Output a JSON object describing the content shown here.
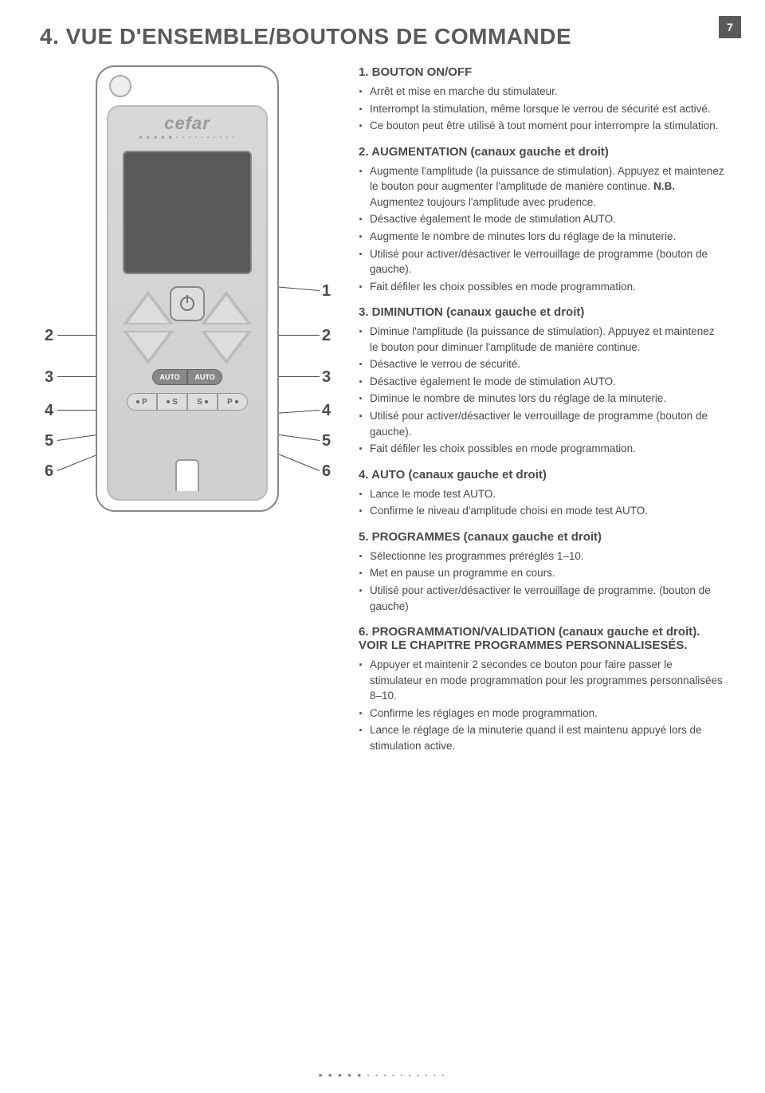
{
  "page": {
    "title": "4. VUE D'ENSEMBLE/BOUTONS DE COMMANDE",
    "number": "7"
  },
  "device": {
    "brand": "cefar",
    "brand_dots": "■ ■ ■ ■ ■ ▪ ▪ ▪ ▪ ▪ ▪ ▪ ▪ ▪ ▪",
    "auto_label": "AUTO",
    "btn_p": "P",
    "btn_s": "S"
  },
  "callouts": {
    "left": [
      "2",
      "3",
      "4",
      "5",
      "6"
    ],
    "right": [
      "1",
      "2",
      "3",
      "4",
      "5",
      "6"
    ]
  },
  "sections": [
    {
      "heading": "1. BOUTON ON/OFF",
      "items": [
        "Arrêt et mise en marche du stimulateur.",
        "Interrompt la stimulation, même lorsque le verrou de sécurité est activé.",
        "Ce bouton peut être utilisé à tout moment pour interrompre la stimulation."
      ]
    },
    {
      "heading": "2. AUGMENTATION (canaux gauche et droit)",
      "items": [
        "Augmente l'amplitude (la puissance de stimulation). Appuyez et maintenez le bouton pour augmenter l'amplitude de manière continue. <span class=\"nb\">N.B.</span> Augmentez toujours l'amplitude avec prudence.",
        "Désactive également le mode de stimulation AUTO.",
        "Augmente le nombre de minutes lors du réglage de la minuterie.",
        "Utilisé pour activer/désactiver le verrouillage de programme (bouton de gauche).",
        "Fait défiler les choix possibles en mode programmation."
      ]
    },
    {
      "heading": "3. DIMINUTION (canaux gauche et droit)",
      "items": [
        "Diminue l'amplitude (la puissance de stimulation). Appuyez et maintenez le bouton pour diminuer l'amplitude de manière continue.",
        "Désactive le verrou de sécurité.",
        "Désactive également le mode de stimulation AUTO.",
        "Diminue le nombre de minutes lors du réglage de la minuterie.",
        "Utilisé pour activer/désactiver le verrouillage de programme (bouton de gauche).",
        "Fait défiler les choix possibles en mode programmation."
      ]
    },
    {
      "heading": "4. AUTO (canaux gauche et droit)",
      "items": [
        "Lance le mode test AUTO.",
        "Confirme le niveau d'amplitude choisi en mode test AUTO."
      ]
    },
    {
      "heading": "5. PROGRAMMES (canaux gauche et droit)",
      "items": [
        "Sélectionne les programmes préréglés 1–10.",
        "Met en pause un programme en cours.",
        "Utilisé pour activer/désactiver le verrouillage de programme. (bouton de gauche)"
      ]
    },
    {
      "heading": "6. PROGRAMMATION/VALIDATION (canaux gauche et droit). VOIR LE CHAPITRE PROGRAMMES PERSONNALISESÉS.",
      "items": [
        "Appuyer et maintenir 2 secondes ce bouton pour faire passer le stimulateur en mode programmation pour les programmes personnalisées 8–10.",
        "Confirme les réglages en mode programmation.",
        "Lance le réglage de la minuterie quand il est maintenu appuyé lors de stimulation active."
      ]
    }
  ],
  "footer_dots": "■ ■ ■ ■ ■ ▪ ▪ ▪ ▪ ▪ ▪ ▪ ▪ ▪ ▪",
  "colors": {
    "text": "#4a4a4a",
    "device_border": "#888888",
    "device_fill": "#d8d8d8",
    "screen": "#5a5a5a",
    "page_badge": "#5a5a5a"
  }
}
